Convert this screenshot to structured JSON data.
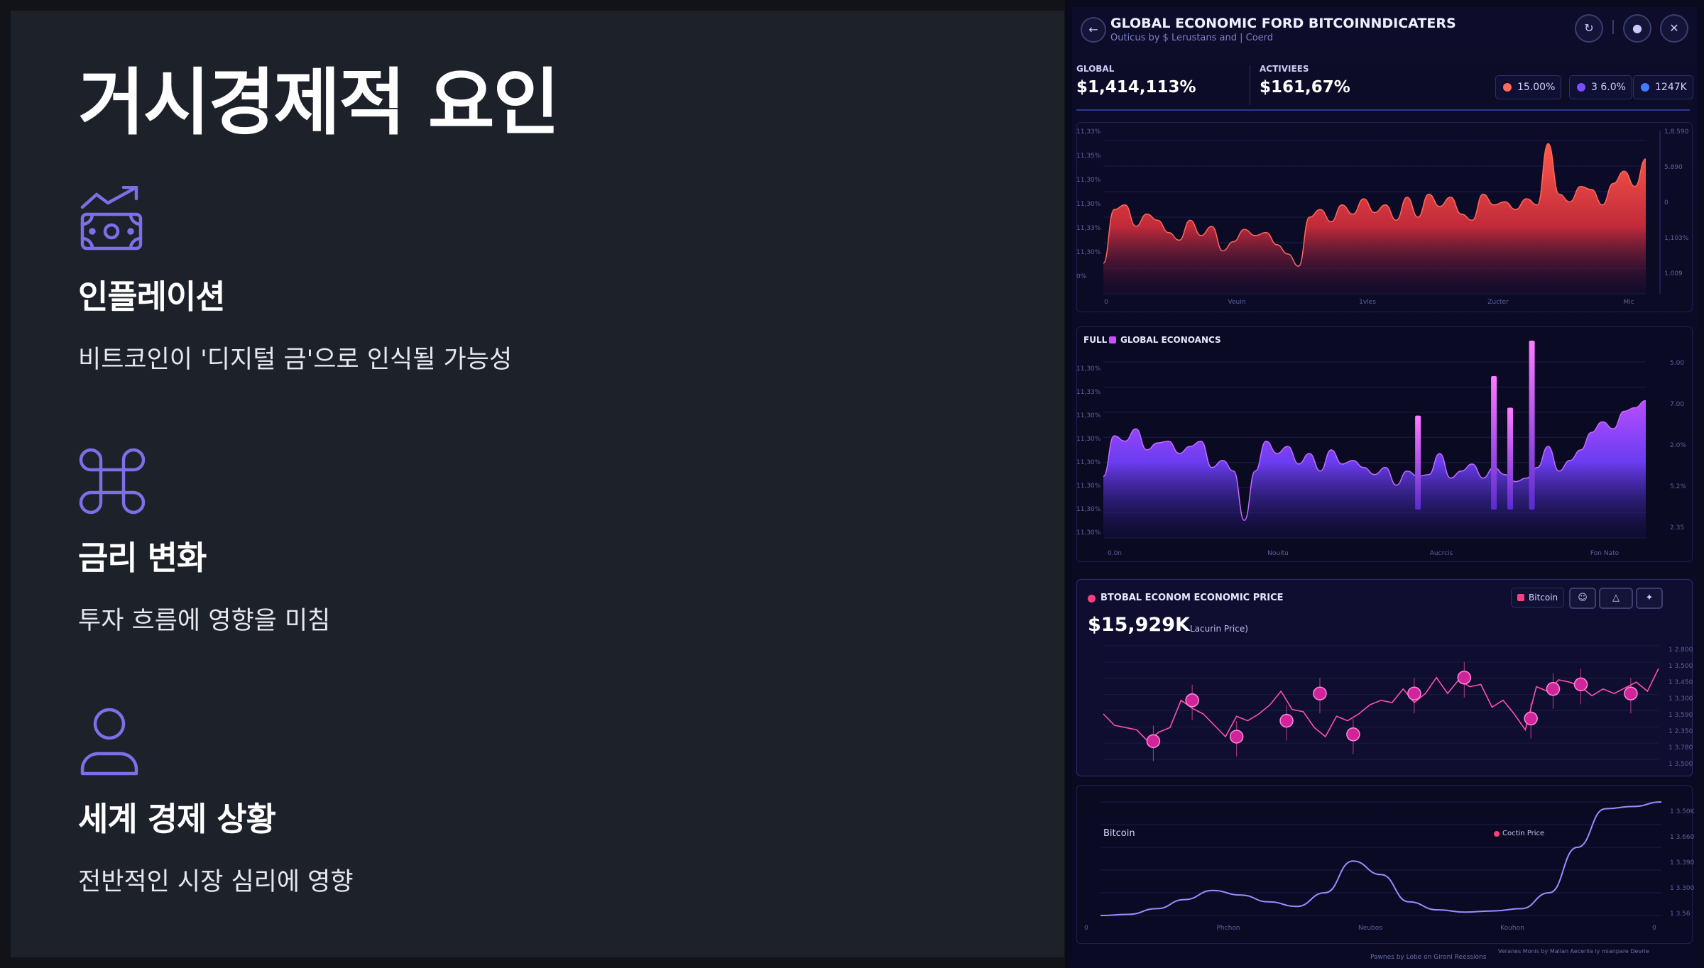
{
  "slide": {
    "title": "거시경제적 요인",
    "factors": [
      {
        "icon": "money-trend-up-icon",
        "heading": "인플레이션",
        "text": "비트코인이 '디지털 금'으로 인식될 가능성"
      },
      {
        "icon": "command-icon",
        "heading": "금리 변화",
        "text": "투자 흐름에 영향을 미침"
      },
      {
        "icon": "user-icon",
        "heading": "세계 경제 상황",
        "text": "전반적인 시장 심리에 영향"
      }
    ]
  },
  "dashboard": {
    "title": "GLOBAL ECONOMIC FORD BITCOINNDICATERS",
    "subtitle": "Outicus by $ Lerustans and   |  Coerd",
    "stats": [
      {
        "label": "GLOBAL",
        "value": "$1,414,113%"
      },
      {
        "label": "ACTIVIEES",
        "value": "$161,67%"
      }
    ],
    "pills": [
      {
        "label": "15.00%",
        "color": "#ff6a5a"
      },
      {
        "label": "3 6.0%",
        "color": "#7a4dff"
      },
      {
        "label": "1247K",
        "color": "#3f7dff"
      }
    ],
    "panel2_labels": {
      "full": "FULL",
      "series": "GLOBAL ECONOANCS"
    },
    "price_panel": {
      "title": "BTOBAL ECONOM ECONOMIC PRICE",
      "price": "$15,929K",
      "price_note": "Lacurin Price)",
      "chip": "Bitcoin"
    },
    "bottom_panel": {
      "left_label": "Bitcoin",
      "right_label": "Coctin Price"
    },
    "footer_right": "Veranes Monis by Mallan Aecerlia ly mianpare  Devrie",
    "footer": "Pawnes by Lobe on Gironl Reessions",
    "colors": {
      "red": "#ff4d4d",
      "purple": "#b84dff",
      "pink": "#ff3fb0",
      "lavender": "#9a8cff"
    }
  },
  "chart_data": [
    {
      "type": "area",
      "ylabels_left": [
        "11,33%",
        "11,35%",
        "11,30%",
        "11,30%",
        "11,33%",
        "11,30%",
        "0%"
      ],
      "ylabels_right": [
        "1,8.590",
        "5.890",
        "0",
        "1,103%",
        "1.009"
      ],
      "xlabels": [
        "0",
        "Veuin",
        "1vles",
        "Zucter",
        "Mic"
      ],
      "x": [
        0,
        2,
        4,
        6,
        8,
        10,
        12,
        14,
        16,
        18,
        20,
        22,
        24,
        26,
        28,
        30,
        32,
        34,
        36,
        38,
        40,
        42,
        44,
        46,
        48,
        50,
        52,
        54,
        56,
        58,
        60,
        62,
        64,
        66,
        68,
        70,
        72,
        74,
        76,
        78,
        80,
        82,
        84,
        86,
        88,
        90,
        92,
        94,
        96,
        98,
        100
      ],
      "values": [
        20,
        55,
        58,
        44,
        52,
        48,
        40,
        35,
        48,
        38,
        44,
        28,
        34,
        42,
        38,
        40,
        32,
        26,
        18,
        50,
        55,
        47,
        58,
        52,
        62,
        53,
        58,
        48,
        63,
        50,
        65,
        57,
        63,
        52,
        48,
        65,
        58,
        60,
        55,
        62,
        58,
        98,
        65,
        60,
        70,
        68,
        58,
        72,
        80,
        70,
        88
      ]
    },
    {
      "type": "area",
      "ylabels_left": [
        "11,30%",
        "11,33%",
        "11,30%",
        "11,30%",
        "11,30%",
        "11,30%",
        "11,30%",
        "11,30%"
      ],
      "ylabels_right": [
        "5.00",
        "7.00",
        "2.0%",
        "5.2%",
        "2.35"
      ],
      "xlabels": [
        "0.0n",
        "Nouitu",
        "Aucrcis",
        "Fon Nato"
      ],
      "x": [
        0,
        2,
        4,
        6,
        8,
        10,
        12,
        14,
        16,
        18,
        20,
        22,
        24,
        26,
        28,
        30,
        32,
        34,
        36,
        38,
        40,
        42,
        44,
        46,
        48,
        50,
        52,
        54,
        56,
        58,
        60,
        62,
        64,
        66,
        68,
        70,
        72,
        74,
        76,
        78,
        80,
        82,
        84,
        86,
        88,
        90,
        92,
        94,
        96,
        98,
        100
      ],
      "values": [
        35,
        58,
        55,
        62,
        50,
        54,
        55,
        48,
        52,
        55,
        40,
        44,
        38,
        10,
        38,
        55,
        48,
        52,
        42,
        48,
        38,
        50,
        42,
        44,
        40,
        36,
        40,
        30,
        38,
        35,
        36,
        48,
        34,
        38,
        42,
        34,
        40,
        36,
        32,
        34,
        40,
        52,
        38,
        44,
        50,
        60,
        66,
        62,
        72,
        74,
        78
      ],
      "spikes": [
        {
          "x": 58,
          "value": 62
        },
        {
          "x": 72,
          "value": 82
        },
        {
          "x": 75,
          "value": 66
        },
        {
          "x": 79,
          "value": 100
        }
      ]
    },
    {
      "type": "line",
      "ylabels_right": [
        "1 2.800",
        "1 3.500",
        "1 3.450",
        "1 3.300",
        "1 3.590",
        "1 2.350",
        "1 3.780",
        "1 3.500"
      ],
      "x": [
        0,
        2,
        4,
        6,
        8,
        10,
        12,
        14,
        16,
        18,
        20,
        22,
        24,
        26,
        28,
        30,
        32,
        34,
        36,
        38,
        40,
        42,
        44,
        46,
        48,
        50,
        52,
        54,
        56,
        58,
        60,
        62,
        64,
        66,
        68,
        70,
        72,
        74,
        76,
        78,
        80,
        82,
        84,
        86,
        88,
        90,
        92,
        94,
        96,
        98,
        100
      ],
      "values": [
        40,
        30,
        28,
        26,
        16,
        24,
        28,
        52,
        45,
        40,
        30,
        20,
        38,
        34,
        40,
        48,
        60,
        44,
        42,
        28,
        20,
        38,
        34,
        40,
        48,
        52,
        50,
        62,
        50,
        58,
        72,
        58,
        70,
        64,
        66,
        46,
        52,
        40,
        26,
        64,
        60,
        70,
        68,
        64,
        56,
        62,
        58,
        63,
        68,
        60,
        80
      ],
      "markers": [
        {
          "x": 9,
          "value": 16
        },
        {
          "x": 16,
          "value": 52
        },
        {
          "x": 24,
          "value": 20
        },
        {
          "x": 33,
          "value": 34
        },
        {
          "x": 39,
          "value": 58
        },
        {
          "x": 45,
          "value": 22
        },
        {
          "x": 56,
          "value": 58
        },
        {
          "x": 65,
          "value": 72
        },
        {
          "x": 77,
          "value": 36
        },
        {
          "x": 81,
          "value": 62
        },
        {
          "x": 86,
          "value": 66
        },
        {
          "x": 95,
          "value": 58
        }
      ]
    },
    {
      "type": "line",
      "ylabels_right": [
        "1 3.50K",
        "1 3.660",
        "1 3.390",
        "1 3.300",
        "1 3.56"
      ],
      "xlabels": [
        "0",
        "Phchon",
        "Neubos",
        "Kouhon",
        "0"
      ],
      "x": [
        0,
        5,
        10,
        15,
        20,
        25,
        30,
        35,
        40,
        45,
        50,
        55,
        60,
        65,
        70,
        75,
        80,
        85,
        90,
        95,
        100
      ],
      "values": [
        0,
        1,
        6,
        14,
        22,
        18,
        12,
        8,
        20,
        48,
        36,
        12,
        5,
        3,
        4,
        6,
        20,
        60,
        94,
        96,
        100
      ]
    }
  ]
}
